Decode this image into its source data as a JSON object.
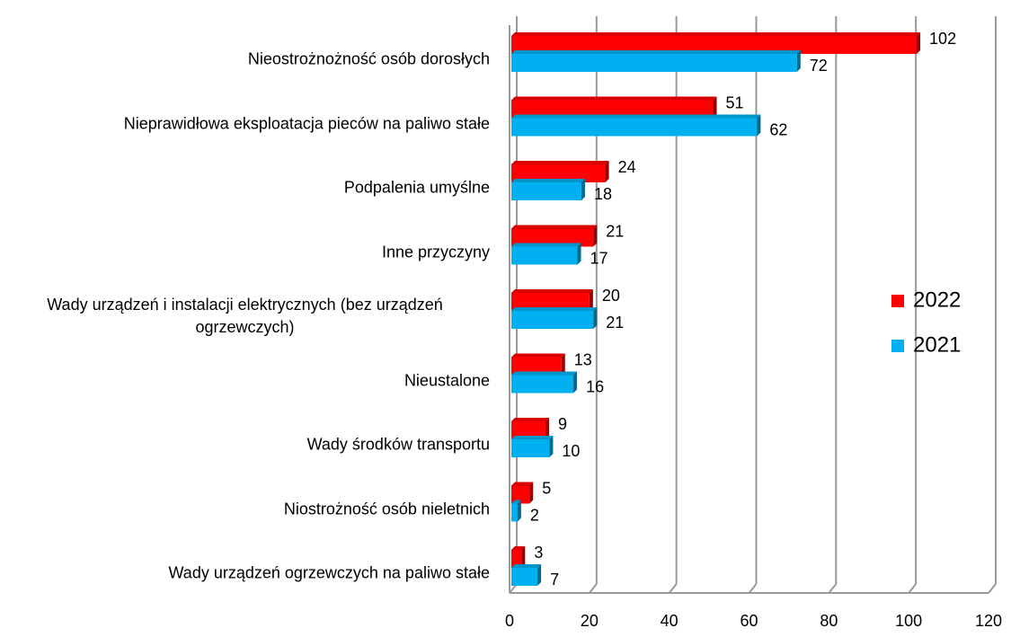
{
  "chart_data": {
    "type": "bar",
    "orientation": "horizontal",
    "categories": [
      "Nieostrożnożność osób dorosłych",
      "Nieprawidłowa eksploatacja pieców na paliwo stałe",
      "Podpalenia umyślne",
      "Inne przyczyny",
      "Wady urządzeń i instalacji elektrycznych (bez urządzeń ogrzewczych)",
      "Nieustalone",
      "Wady środków transportu",
      "Niostrożność osób nieletnich",
      "Wady urządzeń ogrzewczych na paliwo stałe"
    ],
    "series": [
      {
        "name": "2022",
        "color": "#ff0000",
        "values": [
          102,
          51,
          24,
          21,
          20,
          13,
          9,
          5,
          3
        ]
      },
      {
        "name": "2021",
        "color": "#00b0f0",
        "values": [
          72,
          62,
          18,
          17,
          21,
          16,
          10,
          2,
          7
        ]
      }
    ],
    "xlim": [
      0,
      120
    ],
    "xticks": [
      0,
      20,
      40,
      60,
      80,
      100,
      120
    ],
    "grid": true,
    "legend": "right"
  }
}
